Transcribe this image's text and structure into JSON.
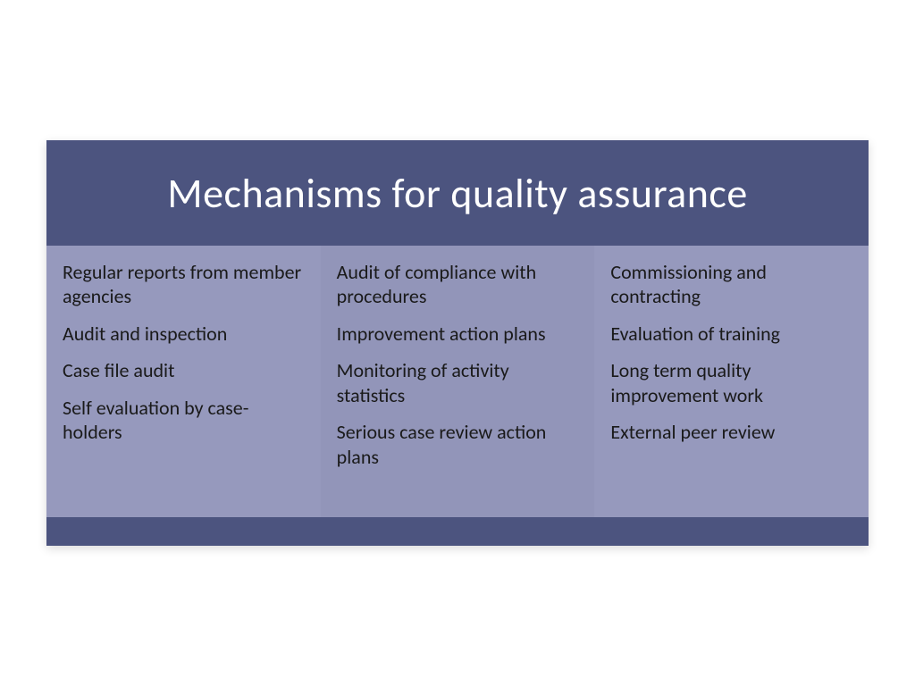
{
  "slide": {
    "title": "Mechanisms for quality assurance",
    "colors": {
      "header_footer_bg": "#4c547f",
      "column_bg_odd": "#9699bd",
      "column_bg_even": "#9295b9",
      "title_text": "#ffffff",
      "body_text": "#1a1a1a",
      "page_bg": "#ffffff"
    },
    "typography": {
      "title_fontsize": 46,
      "body_fontsize": 22,
      "font_family": "Calibri"
    },
    "columns": [
      {
        "items": [
          "Regular reports from member agencies",
          "Audit and inspection",
          "Case file audit",
          "Self evaluation by case-holders"
        ]
      },
      {
        "items": [
          "Audit of compliance with procedures",
          "Improvement action plans",
          "Monitoring of activity statistics",
          "Serious case review action plans"
        ]
      },
      {
        "items": [
          "Commissioning and contracting",
          "Evaluation of training",
          "Long term quality improvement work",
          "External peer review"
        ]
      }
    ]
  }
}
